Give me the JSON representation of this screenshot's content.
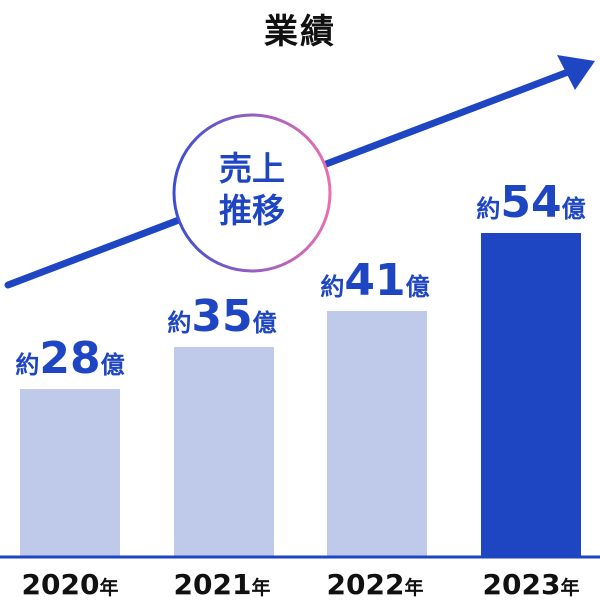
{
  "chart_data": {
    "type": "bar",
    "title": "業績",
    "categories": [
      "2020",
      "2021",
      "2022",
      "2023"
    ],
    "category_suffix": "年",
    "values": [
      28,
      35,
      41,
      54
    ],
    "value_prefix": "約",
    "value_suffix": "億",
    "xlabel": "",
    "ylabel": "",
    "ylim": [
      0,
      70
    ],
    "grid": false,
    "legend": "none",
    "trend_badge": {
      "line1": "売上",
      "line2": "推移"
    },
    "colors": {
      "bar": "#bfcaeb",
      "bar_highlight": "#1f46c2",
      "label": "#1f46c2",
      "arrow": "#1f46c2",
      "axis": "#1f46c2",
      "badge_gradient_start": "#3a4fd0",
      "badge_gradient_end": "#ea6fb0"
    },
    "highlight_index": 3
  }
}
